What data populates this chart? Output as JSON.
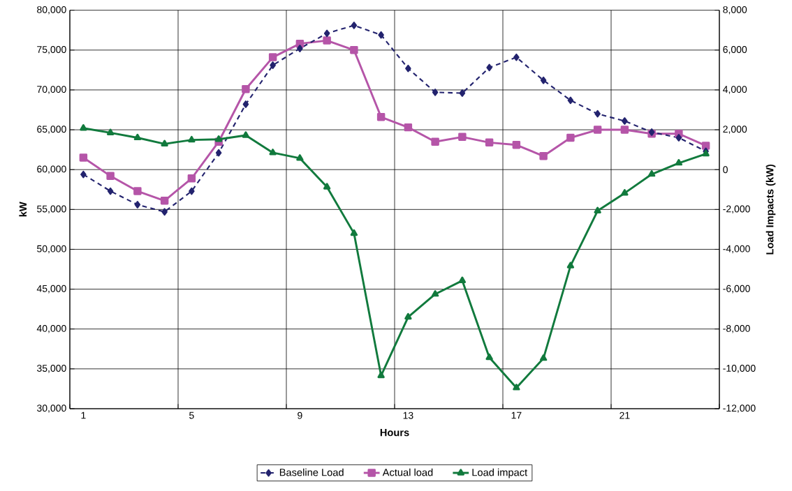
{
  "chart_data": {
    "type": "line",
    "xlabel": "Hours",
    "ylabel": "kW",
    "y2label": "Load Impacts (kW)",
    "x": [
      1,
      2,
      3,
      4,
      5,
      6,
      7,
      8,
      9,
      10,
      11,
      12,
      13,
      14,
      15,
      16,
      17,
      18,
      19,
      20,
      21,
      22,
      23,
      24
    ],
    "xlim": [
      0.5,
      24.5
    ],
    "xticks": [
      {
        "value": 0.5,
        "label": null
      },
      {
        "value": 1,
        "label": "1"
      },
      {
        "value": 4.5,
        "label": null
      },
      {
        "value": 5,
        "label": "5"
      },
      {
        "value": 8.5,
        "label": null
      },
      {
        "value": 9,
        "label": "9"
      },
      {
        "value": 12.5,
        "label": null
      },
      {
        "value": 13,
        "label": "13"
      },
      {
        "value": 16.5,
        "label": null
      },
      {
        "value": 17,
        "label": "17"
      },
      {
        "value": 20.5,
        "label": null
      },
      {
        "value": 21,
        "label": "21"
      },
      {
        "value": 24.5,
        "label": null
      }
    ],
    "ylim": [
      30000,
      80000
    ],
    "yticks": [
      {
        "value": 30000,
        "label": "30,000"
      },
      {
        "value": 35000,
        "label": "35,000"
      },
      {
        "value": 40000,
        "label": "40,000"
      },
      {
        "value": 45000,
        "label": "45,000"
      },
      {
        "value": 50000,
        "label": "50,000"
      },
      {
        "value": 55000,
        "label": "55,000"
      },
      {
        "value": 60000,
        "label": "60,000"
      },
      {
        "value": 65000,
        "label": "65,000"
      },
      {
        "value": 70000,
        "label": "70,000"
      },
      {
        "value": 75000,
        "label": "75,000"
      },
      {
        "value": 80000,
        "label": "80,000"
      }
    ],
    "y2lim": [
      -12000,
      8000
    ],
    "y2ticks": [
      {
        "value": -12000,
        "label": "-12,000"
      },
      {
        "value": -10000,
        "label": "-10,000"
      },
      {
        "value": -8000,
        "label": "-8,000"
      },
      {
        "value": -6000,
        "label": "-6,000"
      },
      {
        "value": -4000,
        "label": "-4,000"
      },
      {
        "value": -2000,
        "label": "-2,000"
      },
      {
        "value": 0,
        "label": "0"
      },
      {
        "value": 2000,
        "label": "2,000"
      },
      {
        "value": 4000,
        "label": "4,000"
      },
      {
        "value": 6000,
        "label": "6,000"
      },
      {
        "value": 8000,
        "label": "8,000"
      }
    ],
    "grid": true,
    "legend": "bottom",
    "series": [
      {
        "name": "Baseline Load",
        "color": "#23236e",
        "marker": "diamond",
        "line_style": "dashed",
        "values": [
          59400,
          57300,
          55600,
          54700,
          57300,
          62100,
          68200,
          73100,
          75200,
          77100,
          78100,
          76900,
          72700,
          69700,
          69600,
          72800,
          74100,
          71200,
          68700,
          67000,
          66100,
          64700,
          64000,
          62300
        ]
      },
      {
        "name": "Actual load",
        "color": "#b555a8",
        "marker": "square",
        "line_style": "solid",
        "values": [
          61500,
          59200,
          57300,
          56100,
          58900,
          63500,
          70100,
          74100,
          75800,
          76200,
          75000,
          66600,
          65300,
          63500,
          64100,
          63400,
          63100,
          61700,
          64000,
          65000,
          65000,
          64500,
          64500,
          63000
        ]
      },
      {
        "name": "Load impact",
        "color": "#117a3d",
        "marker": "triangle",
        "line_style": "solid",
        "axis": "y2",
        "values": [
          2080,
          1850,
          1600,
          1290,
          1490,
          1520,
          1720,
          850,
          570,
          -870,
          -3200,
          -10340,
          -7400,
          -6250,
          -5570,
          -9430,
          -10950,
          -9470,
          -4830,
          -2070,
          -1180,
          -230,
          330,
          790
        ]
      }
    ]
  }
}
